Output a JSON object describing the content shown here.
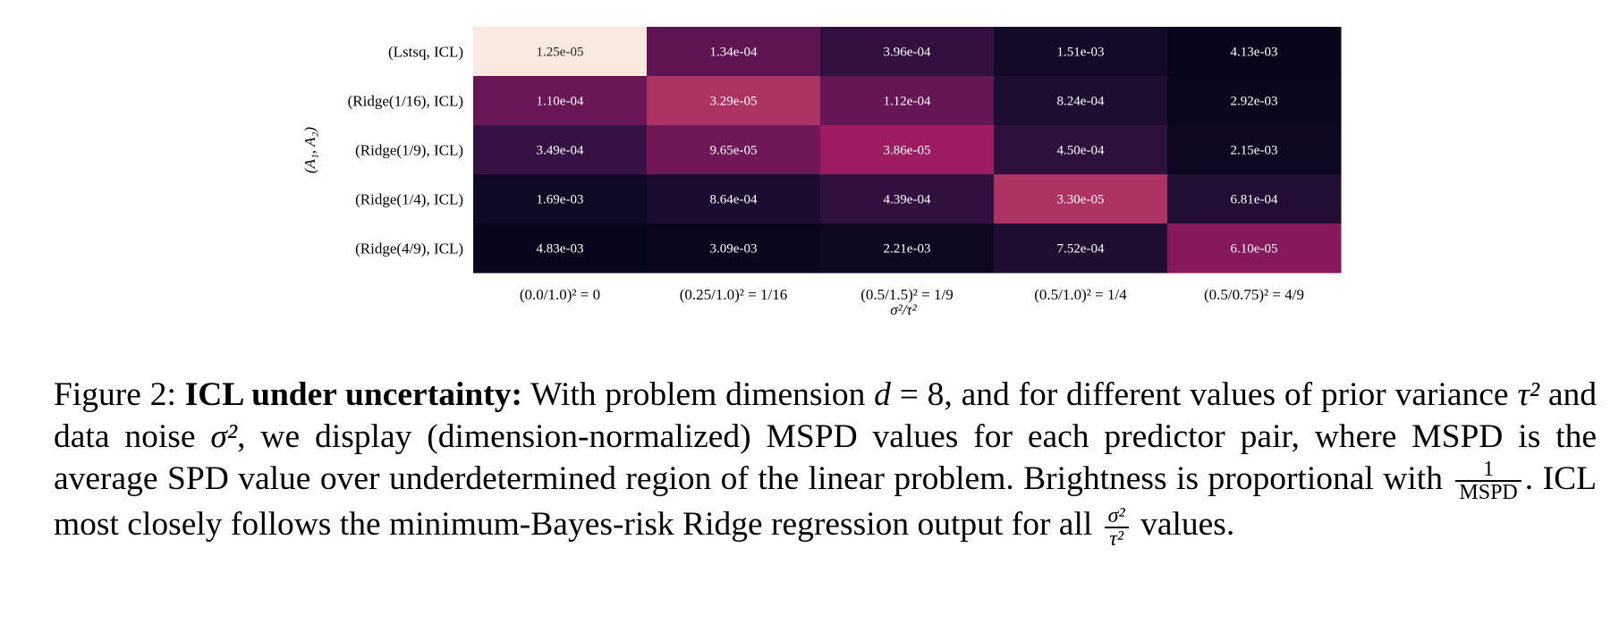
{
  "chart_data": {
    "type": "heatmap",
    "title": "",
    "xlabel": "σ²/τ²",
    "ylabel": "(A₁, A₂)",
    "x_categories": [
      "(0.0/1.0)² = 0",
      "(0.25/1.0)² = 1/16",
      "(0.5/1.5)² = 1/9",
      "(0.5/1.0)² = 1/4",
      "(0.5/0.75)² = 4/9"
    ],
    "y_categories": [
      "(Lstsq, ICL)",
      "(Ridge(1/16), ICL)",
      "(Ridge(1/9), ICL)",
      "(Ridge(1/4), ICL)",
      "(Ridge(4/9), ICL)"
    ],
    "values": [
      [
        1.25e-05,
        0.000134,
        0.000396,
        0.00151,
        0.00413
      ],
      [
        0.00011,
        3.29e-05,
        0.000112,
        0.000824,
        0.00292
      ],
      [
        0.000349,
        9.65e-05,
        3.86e-05,
        0.00045,
        0.00215
      ],
      [
        0.00169,
        0.000864,
        0.000439,
        3.3e-05,
        0.000681
      ],
      [
        0.00483,
        0.00309,
        0.00221,
        0.000752,
        6.1e-05
      ]
    ],
    "labels": [
      [
        "1.25e-05",
        "1.34e-04",
        "3.96e-04",
        "1.51e-03",
        "4.13e-03"
      ],
      [
        "1.10e-04",
        "3.29e-05",
        "1.12e-04",
        "8.24e-04",
        "2.92e-03"
      ],
      [
        "3.49e-04",
        "9.65e-05",
        "3.86e-05",
        "4.50e-04",
        "2.15e-03"
      ],
      [
        "1.69e-03",
        "8.64e-04",
        "4.39e-04",
        "3.30e-05",
        "6.81e-04"
      ],
      [
        "4.83e-03",
        "3.09e-03",
        "2.21e-03",
        "7.52e-04",
        "6.10e-05"
      ]
    ],
    "colormap": "rocket",
    "brightness": "proportional to 1/MSPD"
  },
  "caption": {
    "figure_label": "Figure 2:",
    "bold_title": "ICL under uncertainty:",
    "t1": "With problem dimension ",
    "math_d": "d",
    "t2": " = 8, and for different values of prior variance ",
    "math_tau2": "τ²",
    "t3": " and data noise ",
    "math_sigma2": "σ²",
    "t4": ", we display (dimension-normalized) MSPD values for each predictor pair, where MSPD is the average SPD value over underdetermined region of the linear problem. Brightness is proportional with ",
    "frac1_num": "1",
    "frac1_den": "MSPD",
    "t5": ". ICL most closely follows the minimum-Bayes-risk Ridge regression output for all ",
    "frac2_num": "σ²",
    "frac2_den": "τ²",
    "t6": " values."
  }
}
